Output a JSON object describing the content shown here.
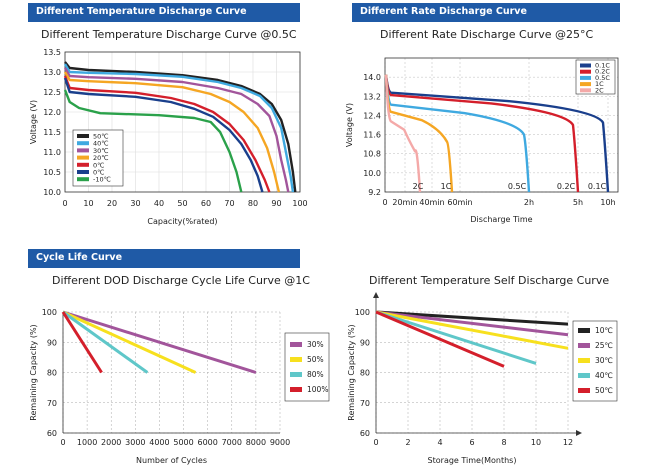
{
  "banners": {
    "temp_discharge": "Different Temperature Discharge Curve",
    "rate_discharge": "Different Rate Discharge Curve",
    "cycle_life": "Cycle Life Curve"
  },
  "colors": {
    "banner": "#1f5aa6",
    "c50": "#222222",
    "c40": "#3fa9e0",
    "c30": "#a2559b",
    "c20": "#f5a623",
    "c0": "#d41f2b",
    "c10n": "#2aa14a",
    "gray": "#777777",
    "dkblue": "#1a3f8c",
    "yellow": "#f7e01e",
    "teal": "#5fc7c9"
  },
  "chart_data": [
    {
      "id": "temp",
      "type": "line",
      "title": "Different Temperature Discharge Curve @0.5C",
      "xlabel": "Capacity(%rated)",
      "ylabel": "Voltage (V)",
      "xlim": [
        0,
        100
      ],
      "ylim": [
        10.0,
        13.5
      ],
      "xticks": [
        "0",
        "10",
        "20",
        "30",
        "40",
        "50",
        "60",
        "70",
        "80",
        "90",
        "100"
      ],
      "yticks": [
        "10.0",
        "10.5",
        "11.0",
        "11.5",
        "12.0",
        "12.5",
        "13.0",
        "13.5"
      ],
      "series": [
        {
          "name": "50℃",
          "color": "#222222",
          "points": [
            [
              0,
              13.25
            ],
            [
              2,
              13.1
            ],
            [
              10,
              13.05
            ],
            [
              30,
              13.0
            ],
            [
              50,
              12.92
            ],
            [
              65,
              12.8
            ],
            [
              75,
              12.65
            ],
            [
              83,
              12.45
            ],
            [
              88,
              12.2
            ],
            [
              92,
              11.8
            ],
            [
              95,
              11.2
            ],
            [
              97,
              10.5
            ],
            [
              98,
              10.0
            ]
          ]
        },
        {
          "name": "40℃",
          "color": "#3fa9e0",
          "points": [
            [
              0,
              13.2
            ],
            [
              2,
              13.0
            ],
            [
              10,
              12.98
            ],
            [
              30,
              12.95
            ],
            [
              50,
              12.88
            ],
            [
              65,
              12.75
            ],
            [
              75,
              12.6
            ],
            [
              83,
              12.4
            ],
            [
              88,
              12.1
            ],
            [
              92,
              11.6
            ],
            [
              94,
              11.0
            ],
            [
              96,
              10.4
            ],
            [
              97,
              10.0
            ]
          ]
        },
        {
          "name": "30℃",
          "color": "#a2559b",
          "points": [
            [
              0,
              13.1
            ],
            [
              2,
              12.9
            ],
            [
              10,
              12.87
            ],
            [
              30,
              12.83
            ],
            [
              50,
              12.75
            ],
            [
              65,
              12.6
            ],
            [
              75,
              12.45
            ],
            [
              82,
              12.2
            ],
            [
              87,
              11.9
            ],
            [
              90,
              11.4
            ],
            [
              92,
              10.8
            ],
            [
              94,
              10.3
            ],
            [
              95,
              10.0
            ]
          ]
        },
        {
          "name": "20℃",
          "color": "#f5a623",
          "points": [
            [
              0,
              13.0
            ],
            [
              2,
              12.8
            ],
            [
              10,
              12.77
            ],
            [
              30,
              12.72
            ],
            [
              50,
              12.62
            ],
            [
              62,
              12.45
            ],
            [
              70,
              12.25
            ],
            [
              76,
              12.0
            ],
            [
              82,
              11.6
            ],
            [
              86,
              11.1
            ],
            [
              89,
              10.5
            ],
            [
              91,
              10.0
            ]
          ]
        },
        {
          "name": "0℃",
          "color": "#d41f2b",
          "points": [
            [
              0,
              12.9
            ],
            [
              2,
              12.6
            ],
            [
              10,
              12.55
            ],
            [
              30,
              12.48
            ],
            [
              45,
              12.35
            ],
            [
              55,
              12.2
            ],
            [
              63,
              12.0
            ],
            [
              70,
              11.7
            ],
            [
              76,
              11.3
            ],
            [
              81,
              10.8
            ],
            [
              85,
              10.3
            ],
            [
              87,
              10.0
            ]
          ]
        },
        {
          "name": "0℃",
          "color": "#1a3f8c",
          "points": [
            [
              0,
              12.85
            ],
            [
              2,
              12.5
            ],
            [
              10,
              12.45
            ],
            [
              30,
              12.38
            ],
            [
              45,
              12.25
            ],
            [
              55,
              12.08
            ],
            [
              63,
              11.88
            ],
            [
              70,
              11.55
            ],
            [
              75,
              11.2
            ],
            [
              79,
              10.8
            ],
            [
              82,
              10.4
            ],
            [
              84,
              10.0
            ]
          ]
        },
        {
          "name": "-10℃",
          "color": "#2aa14a",
          "points": [
            [
              0,
              12.55
            ],
            [
              2,
              12.25
            ],
            [
              6,
              12.1
            ],
            [
              15,
              11.97
            ],
            [
              40,
              11.92
            ],
            [
              55,
              11.85
            ],
            [
              62,
              11.75
            ],
            [
              66,
              11.5
            ],
            [
              70,
              11.0
            ],
            [
              73,
              10.5
            ],
            [
              75,
              10.0
            ]
          ]
        }
      ],
      "legend": "bottom-left"
    },
    {
      "id": "rate",
      "type": "line",
      "title": "Different Rate Discharge Curve @25°C",
      "xlabel": "Discharge Time",
      "ylabel": "Voltage (V)",
      "ylim": [
        9.2,
        14.8
      ],
      "yticks": [
        "9.2",
        "10.0",
        "10.8",
        "11.6",
        "12.4",
        "13.2",
        "14.0"
      ],
      "xticks": [
        "0",
        "20min",
        "40min",
        "60min",
        "2h",
        "5h",
        "10h"
      ],
      "annotations": [
        "2C",
        "1C",
        "0.5C",
        "0.2C",
        "0.1C"
      ],
      "series": [
        {
          "name": "0.1C",
          "color": "#1a3f8c"
        },
        {
          "name": "0.2C",
          "color": "#d41f2b"
        },
        {
          "name": "0.5C",
          "color": "#3fa9e0"
        },
        {
          "name": "1C",
          "color": "#f5a623"
        },
        {
          "name": "2C",
          "color": "#f4a9a8"
        }
      ],
      "legend": "top-right"
    },
    {
      "id": "dod",
      "type": "line",
      "title": "Different DOD Discharge Cycle Life Curve @1C",
      "xlabel": "Number of Cycles",
      "ylabel": "Remaining Capacity (%)",
      "xlim": [
        0,
        9000
      ],
      "ylim": [
        60,
        100
      ],
      "xticks": [
        "0",
        "1000",
        "2000",
        "3000",
        "4000",
        "5000",
        "6000",
        "7000",
        "8000",
        "9000"
      ],
      "yticks": [
        "60",
        "70",
        "80",
        "90",
        "100"
      ],
      "series": [
        {
          "name": "30%",
          "color": "#a2559b",
          "points": [
            [
              0,
              100
            ],
            [
              8000,
              80
            ]
          ]
        },
        {
          "name": "50%",
          "color": "#f7e01e",
          "points": [
            [
              0,
              100
            ],
            [
              5500,
              80
            ]
          ]
        },
        {
          "name": "80%",
          "color": "#5fc7c9",
          "points": [
            [
              0,
              100
            ],
            [
              3500,
              80
            ]
          ]
        },
        {
          "name": "100%",
          "color": "#d41f2b",
          "points": [
            [
              0,
              100
            ],
            [
              1600,
              80
            ]
          ]
        }
      ],
      "legend": "right"
    },
    {
      "id": "self",
      "type": "line",
      "title": "Different Temperature Self Discharge Curve",
      "xlabel": "Storage Time(Months)",
      "ylabel": "Remaining Capacity (%)",
      "xlim": [
        0,
        12
      ],
      "ylim": [
        60,
        100
      ],
      "xticks": [
        "0",
        "2",
        "4",
        "6",
        "8",
        "10",
        "12"
      ],
      "yticks": [
        "60",
        "70",
        "80",
        "90",
        "100"
      ],
      "series": [
        {
          "name": "10℃",
          "color": "#222222",
          "points": [
            [
              0,
              100
            ],
            [
              12,
              96
            ]
          ]
        },
        {
          "name": "25℃",
          "color": "#a2559b",
          "points": [
            [
              0,
              100
            ],
            [
              12,
              92.5
            ]
          ]
        },
        {
          "name": "30℃",
          "color": "#f7e01e",
          "points": [
            [
              0,
              100
            ],
            [
              12,
              88
            ]
          ]
        },
        {
          "name": "40℃",
          "color": "#5fc7c9",
          "points": [
            [
              0,
              100
            ],
            [
              10,
              83
            ]
          ]
        },
        {
          "name": "50℃",
          "color": "#d41f2b",
          "points": [
            [
              0,
              100
            ],
            [
              8,
              82
            ]
          ]
        }
      ],
      "legend": "right"
    }
  ]
}
